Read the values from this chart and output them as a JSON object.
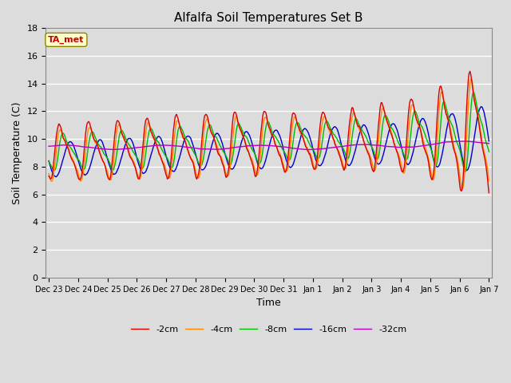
{
  "title": "Alfalfa Soil Temperatures Set B",
  "xlabel": "Time",
  "ylabel": "Soil Temperature (C)",
  "ylim": [
    0,
    18
  ],
  "background_color": "#dcdcdc",
  "plot_bg_color": "#dcdcdc",
  "grid_color": "#ffffff",
  "line_colors": {
    "-2cm": "#dd0000",
    "-4cm": "#ff8800",
    "-8cm": "#00bb00",
    "-16cm": "#0000cc",
    "-32cm": "#bb00bb"
  },
  "legend_labels": [
    "-2cm",
    "-4cm",
    "-8cm",
    "-16cm",
    "-32cm"
  ],
  "annotation_text": "TA_met",
  "annotation_bg": "#ffffcc",
  "annotation_border": "#888800",
  "x_tick_labels": [
    "Dec 23",
    "Dec 24",
    "Dec 25",
    "Dec 26",
    "Dec 27",
    "Dec 28",
    "Dec 29",
    "Dec 30",
    "Dec 31",
    "Jan 1",
    "Jan 2",
    "Jan 3",
    "Jan 4",
    "Jan 5",
    "Jan 6",
    "Jan 7"
  ],
  "n_points": 1000
}
